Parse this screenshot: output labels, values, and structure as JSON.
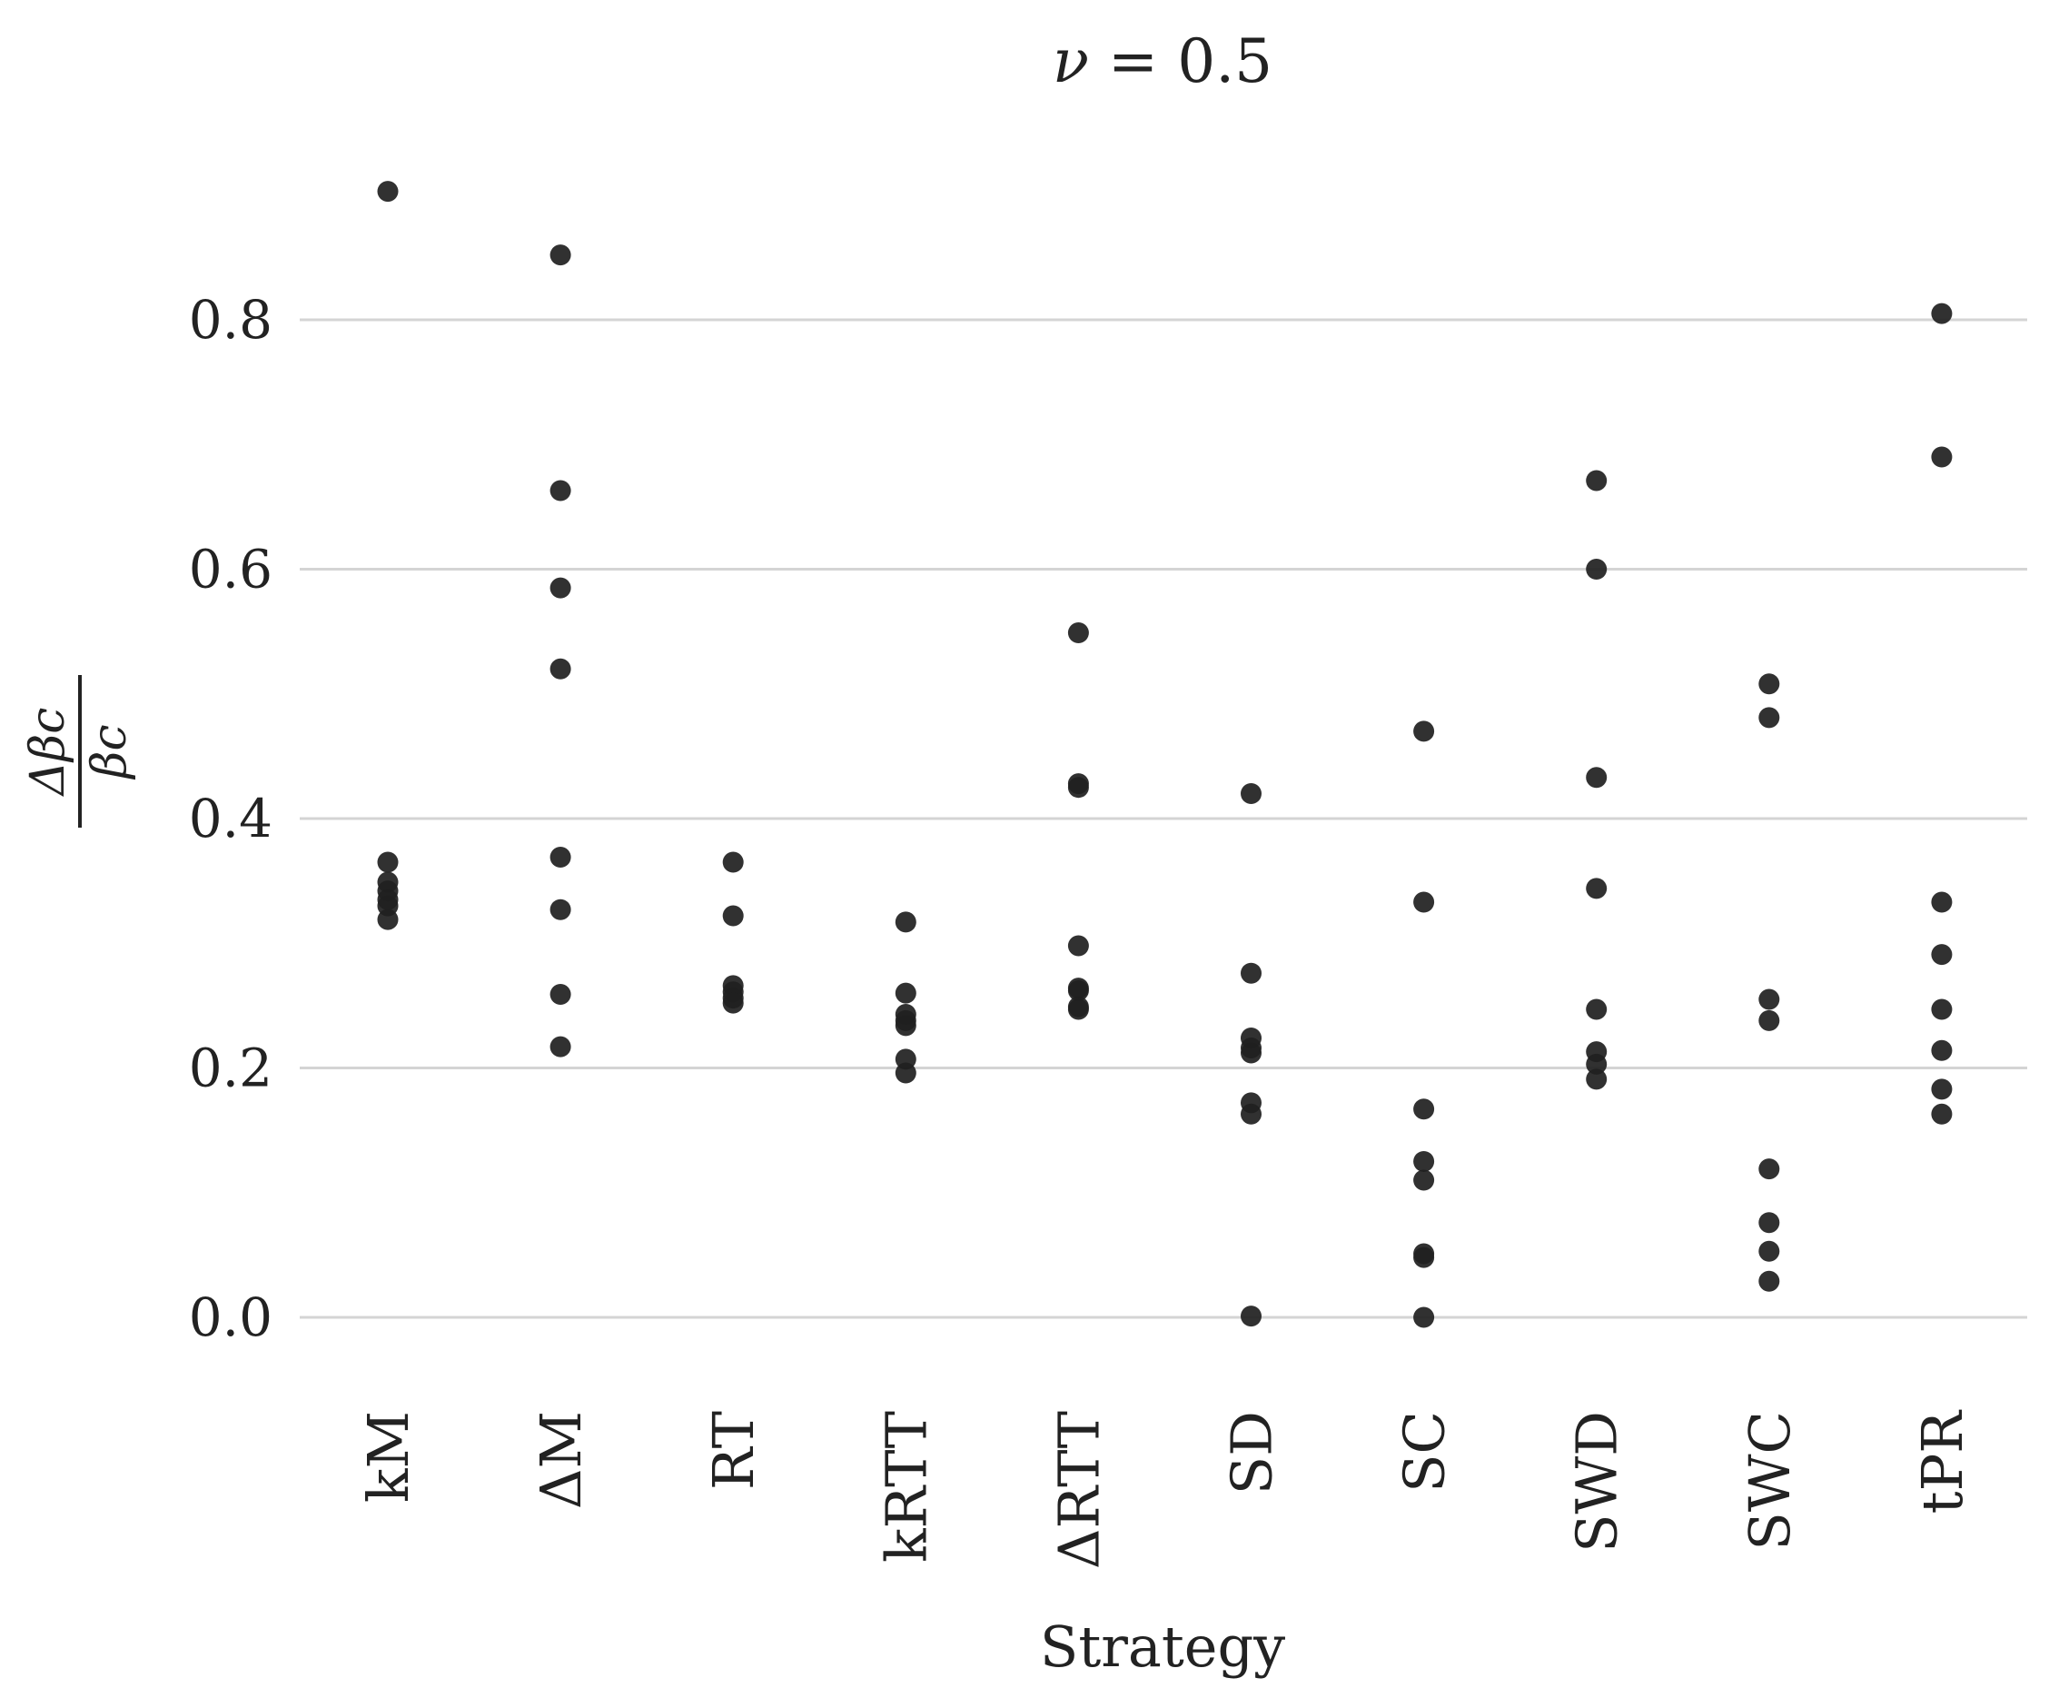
{
  "chart_data": {
    "type": "scatter",
    "title": "ν = 0.5",
    "title_parts": {
      "var": "ν",
      "rest": " = 0.5"
    },
    "xlabel": "Strategy",
    "ylabel": {
      "numerator": "Δβc",
      "denominator": "βc"
    },
    "ylim": [
      -0.08,
      0.92
    ],
    "yticks": [
      0.0,
      0.2,
      0.4,
      0.6,
      0.8
    ],
    "ytick_labels": [
      "0.0",
      "0.2",
      "0.4",
      "0.6",
      "0.8"
    ],
    "grid": "horizontal",
    "point_color": "#1f1f1f",
    "grid_color": "#d4d4d4",
    "categories": [
      "kM",
      "ΔM",
      "RT",
      "kRTT",
      "ΔRTT",
      "SD",
      "SC",
      "SWD",
      "SWC",
      "tPR"
    ],
    "points": [
      {
        "category": "kM",
        "values": [
          0.903,
          0.365,
          0.349,
          0.342,
          0.335,
          0.33,
          0.319
        ]
      },
      {
        "category": "ΔM",
        "values": [
          0.852,
          0.663,
          0.585,
          0.52,
          0.369,
          0.327,
          0.259,
          0.217
        ]
      },
      {
        "category": "RT",
        "values": [
          0.365,
          0.322,
          0.266,
          0.261,
          0.256,
          0.252
        ]
      },
      {
        "category": "kRTT",
        "values": [
          0.317,
          0.26,
          0.243,
          0.238,
          0.234,
          0.207,
          0.196
        ]
      },
      {
        "category": "ΔRTT",
        "values": [
          0.549,
          0.428,
          0.425,
          0.298,
          0.264,
          0.262,
          0.249,
          0.247
        ]
      },
      {
        "category": "SD",
        "values": [
          0.42,
          0.276,
          0.224,
          0.216,
          0.212,
          0.172,
          0.163,
          0.001
        ]
      },
      {
        "category": "SC",
        "values": [
          0.47,
          0.333,
          0.167,
          0.125,
          0.11,
          0.051,
          0.048,
          0.0
        ]
      },
      {
        "category": "SWD",
        "values": [
          0.671,
          0.6,
          0.433,
          0.344,
          0.247,
          0.213,
          0.203,
          0.191
        ]
      },
      {
        "category": "SWC",
        "values": [
          0.508,
          0.481,
          0.255,
          0.238,
          0.119,
          0.076,
          0.053,
          0.029
        ]
      },
      {
        "category": "tPR",
        "values": [
          0.805,
          0.69,
          0.333,
          0.291,
          0.247,
          0.214,
          0.183,
          0.163
        ]
      }
    ]
  }
}
